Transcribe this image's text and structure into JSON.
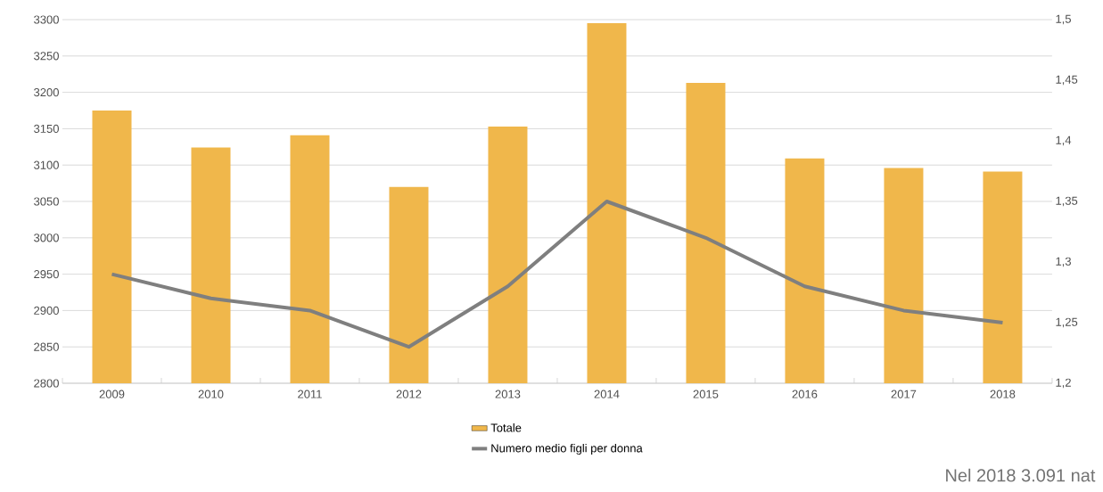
{
  "chart_data": {
    "type": "bar",
    "categories": [
      "2009",
      "2010",
      "2011",
      "2012",
      "2013",
      "2014",
      "2015",
      "2016",
      "2017",
      "2018"
    ],
    "series": [
      {
        "name": "Totale",
        "color": "#f0b74b",
        "values": [
          3175,
          3124,
          3141,
          3070,
          3153,
          3295,
          3213,
          3109,
          3096,
          3091
        ]
      },
      {
        "name": "Numero medio figli per donna",
        "type": "line",
        "axis": "y2",
        "color": "#7f7f7f",
        "values": [
          1.29,
          1.27,
          1.26,
          1.23,
          1.28,
          1.35,
          1.32,
          1.28,
          1.26,
          1.25
        ]
      }
    ],
    "ylim": [
      2800,
      3300
    ],
    "yticks": [
      2800,
      2850,
      2900,
      2950,
      3000,
      3050,
      3100,
      3150,
      3200,
      3250,
      3300
    ],
    "y2lim": [
      1.2,
      1.5
    ],
    "y2ticks": [
      {
        "value": 1.2,
        "label": "1,2"
      },
      {
        "value": 1.25,
        "label": "1,25"
      },
      {
        "value": 1.3,
        "label": "1,3"
      },
      {
        "value": 1.35,
        "label": "1,35"
      },
      {
        "value": 1.4,
        "label": "1,4"
      },
      {
        "value": 1.45,
        "label": "1,45"
      },
      {
        "value": 1.5,
        "label": "1,5"
      }
    ],
    "grid": "y",
    "legend": "bottom",
    "annotations": [
      "Nel 2018 3.091 nat"
    ]
  }
}
